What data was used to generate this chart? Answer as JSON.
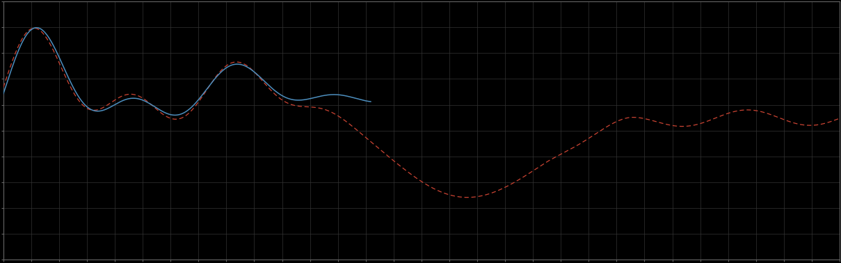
{
  "background_color": "#000000",
  "plot_bg_color": "#000000",
  "grid_color_major": "#333333",
  "blue_color": "#4d8fbf",
  "red_color": "#cc4433",
  "spine_color": "#666666",
  "xlim": [
    0,
    100
  ],
  "ylim": [
    0,
    10
  ],
  "figsize": [
    12.09,
    3.78
  ],
  "dpi": 100,
  "N": 800
}
